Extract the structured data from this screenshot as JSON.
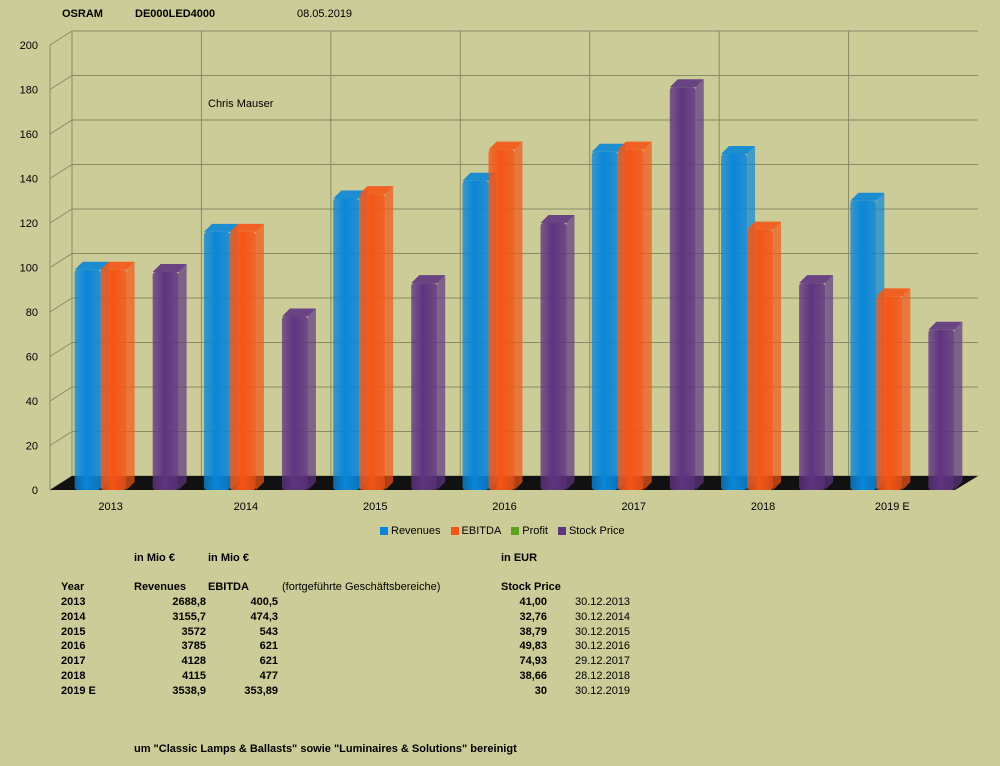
{
  "header": {
    "company": "OSRAM",
    "isin": "DE000LED4000",
    "date": "08.05.2019"
  },
  "author": "Chris Mauser",
  "chart_data": {
    "type": "bar",
    "categories": [
      "2013",
      "2014",
      "2015",
      "2016",
      "2017",
      "2018",
      "2019 E"
    ],
    "ylim": [
      0,
      200
    ],
    "yticks": [
      0,
      20,
      40,
      60,
      80,
      100,
      120,
      140,
      160,
      180,
      200
    ],
    "grid": true,
    "legend_position": "bottom",
    "series": [
      {
        "name": "Revenues",
        "color": "#0a86d8",
        "values": [
          99,
          116,
          131,
          139,
          152,
          151,
          130
        ]
      },
      {
        "name": "EBITDA",
        "color": "#f45516",
        "values": [
          99,
          116,
          133,
          153,
          153,
          117,
          87
        ]
      },
      {
        "name": "Profit",
        "color": "#5ea020",
        "values": [
          null,
          null,
          null,
          null,
          null,
          null,
          null
        ]
      },
      {
        "name": "Stock Price",
        "color": "#5e3480",
        "values": [
          98,
          78,
          93,
          120,
          181,
          93,
          72
        ]
      }
    ]
  },
  "table": {
    "unit_left": "in Mio €",
    "unit_mid": "in Mio €",
    "unit_right": "in EUR",
    "headers": {
      "year": "Year",
      "revenues": "Revenues",
      "ebitda": "EBITDA",
      "note": "(fortgeführte Geschäftsbereiche)",
      "stock": "Stock Price"
    },
    "rows": [
      {
        "year": "2013",
        "revenues": "2688,8",
        "ebitda": "400,5",
        "stock": "41,00",
        "date": "30.12.2013"
      },
      {
        "year": "2014",
        "revenues": "3155,7",
        "ebitda": "474,3",
        "stock": "32,76",
        "date": "30.12.2014"
      },
      {
        "year": "2015",
        "revenues": "3572",
        "ebitda": "543",
        "stock": "38,79",
        "date": "30.12.2015"
      },
      {
        "year": "2016",
        "revenues": "3785",
        "ebitda": "621",
        "stock": "49,83",
        "date": "30.12.2016"
      },
      {
        "year": "2017",
        "revenues": "4128",
        "ebitda": "621",
        "stock": "74,93",
        "date": "29.12.2017"
      },
      {
        "year": "2018",
        "revenues": "4115",
        "ebitda": "477",
        "stock": "38,66",
        "date": "28.12.2018"
      },
      {
        "year": "2019 E",
        "revenues": "3538,9",
        "ebitda": "353,89",
        "stock": "30",
        "date": "30.12.2019"
      }
    ],
    "footnote": "um \"Classic Lamps & Ballasts\" sowie \"Luminaires & Solutions\" bereinigt"
  }
}
